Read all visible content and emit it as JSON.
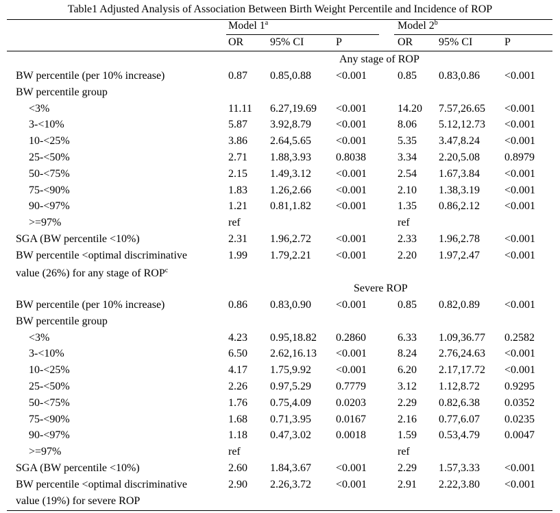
{
  "table": {
    "title": "Table1 Adjusted Analysis of Association Between Birth Weight Percentile and Incidence of ROP",
    "model1": {
      "label": "Model 1",
      "sup": "a"
    },
    "model2": {
      "label": "Model 2",
      "sup": "b"
    },
    "subheaders": [
      "OR",
      "95% CI",
      "P",
      "OR",
      "95% CI",
      "P"
    ],
    "section1": {
      "title": "Any stage of ROP",
      "rows": [
        {
          "label": "BW percentile (per 10% increase)",
          "or1": "0.87",
          "ci1": "0.85,0.88",
          "p1": "<0.001",
          "or2": "0.85",
          "ci2": "0.83,0.86",
          "p2": "<0.001"
        },
        {
          "label": "BW percentile group",
          "or1": "",
          "ci1": "",
          "p1": "",
          "or2": "",
          "ci2": "",
          "p2": ""
        },
        {
          "label": "<3%",
          "or1": "11.11",
          "ci1": "6.27,19.69",
          "p1": "<0.001",
          "or2": "14.20",
          "ci2": "7.57,26.65",
          "p2": "<0.001"
        },
        {
          "label": "3-<10%",
          "or1": "5.87",
          "ci1": "3.92,8.79",
          "p1": "<0.001",
          "or2": "8.06",
          "ci2": "5.12,12.73",
          "p2": "<0.001"
        },
        {
          "label": "10-<25%",
          "or1": "3.86",
          "ci1": "2.64,5.65",
          "p1": "<0.001",
          "or2": "5.35",
          "ci2": "3.47,8.24",
          "p2": "<0.001"
        },
        {
          "label": "25-<50%",
          "or1": "2.71",
          "ci1": "1.88,3.93",
          "p1": "0.8038",
          "or2": "3.34",
          "ci2": "2.20,5.08",
          "p2": "0.8979"
        },
        {
          "label": "50-<75%",
          "or1": "2.15",
          "ci1": "1.49,3.12",
          "p1": "<0.001",
          "or2": "2.54",
          "ci2": "1.67,3.84",
          "p2": "<0.001"
        },
        {
          "label": "75-<90%",
          "or1": "1.83",
          "ci1": "1.26,2.66",
          "p1": "<0.001",
          "or2": "2.10",
          "ci2": "1.38,3.19",
          "p2": "<0.001"
        },
        {
          "label": "90-<97%",
          "or1": "1.21",
          "ci1": "0.81,1.82",
          "p1": "<0.001",
          "or2": "1.35",
          "ci2": "0.86,2.12",
          "p2": "<0.001"
        },
        {
          "label": ">=97%",
          "or1": "ref",
          "ci1": "",
          "p1": "",
          "or2": "ref",
          "ci2": "",
          "p2": ""
        },
        {
          "label": "SGA (BW percentile <10%)",
          "or1": "2.31",
          "ci1": "1.96,2.72",
          "p1": "<0.001",
          "or2": "2.33",
          "ci2": "1.96,2.78",
          "p2": "<0.001"
        },
        {
          "label": "BW percentile <optimal discriminative",
          "or1": "1.99",
          "ci1": "1.79,2.21",
          "p1": "<0.001",
          "or2": "2.20",
          "ci2": "1.97,2.47",
          "p2": "<0.001"
        }
      ],
      "continuation": "value (26%) for any stage of ROP",
      "continuation_sup": "c"
    },
    "section2": {
      "title": "Severe ROP",
      "rows": [
        {
          "label": "BW percentile (per 10% increase)",
          "or1": "0.86",
          "ci1": "0.83,0.90",
          "p1": "<0.001",
          "or2": "0.85",
          "ci2": "0.82,0.89",
          "p2": "<0.001"
        },
        {
          "label": "BW percentile group",
          "or1": "",
          "ci1": "",
          "p1": "",
          "or2": "",
          "ci2": "",
          "p2": ""
        },
        {
          "label": "<3%",
          "or1": "4.23",
          "ci1": "0.95,18.82",
          "p1": "0.2860",
          "or2": "6.33",
          "ci2": "1.09,36.77",
          "p2": "0.2582"
        },
        {
          "label": "3-<10%",
          "or1": "6.50",
          "ci1": "2.62,16.13",
          "p1": "<0.001",
          "or2": "8.24",
          "ci2": "2.76,24.63",
          "p2": "<0.001"
        },
        {
          "label": "10-<25%",
          "or1": "4.17",
          "ci1": "1.75,9.92",
          "p1": "<0.001",
          "or2": "6.20",
          "ci2": "2.17,17.72",
          "p2": "<0.001"
        },
        {
          "label": "25-<50%",
          "or1": "2.26",
          "ci1": "0.97,5.29",
          "p1": "0.7779",
          "or2": "3.12",
          "ci2": "1.12,8.72",
          "p2": "0.9295"
        },
        {
          "label": "50-<75%",
          "or1": "1.76",
          "ci1": "0.75,4.09",
          "p1": "0.0203",
          "or2": "2.29",
          "ci2": "0.82,6.38",
          "p2": "0.0352"
        },
        {
          "label": "75-<90%",
          "or1": "1.68",
          "ci1": "0.71,3.95",
          "p1": "0.0167",
          "or2": "2.16",
          "ci2": "0.77,6.07",
          "p2": "0.0235"
        },
        {
          "label": "90-<97%",
          "or1": "1.18",
          "ci1": "0.47,3.02",
          "p1": "0.0018",
          "or2": "1.59",
          "ci2": "0.53,4.79",
          "p2": "0.0047"
        },
        {
          "label": ">=97%",
          "or1": "ref",
          "ci1": "",
          "p1": "",
          "or2": "ref",
          "ci2": "",
          "p2": ""
        },
        {
          "label": "SGA (BW percentile <10%)",
          "or1": "2.60",
          "ci1": "1.84,3.67",
          "p1": "<0.001",
          "or2": "2.29",
          "ci2": "1.57,3.33",
          "p2": "<0.001"
        },
        {
          "label": "BW percentile <optimal discriminative",
          "or1": "2.90",
          "ci1": "2.26,3.72",
          "p1": "<0.001",
          "or2": "2.91",
          "ci2": "2.22,3.80",
          "p2": "<0.001"
        }
      ],
      "continuation": "value (19%) for severe ROP"
    }
  }
}
